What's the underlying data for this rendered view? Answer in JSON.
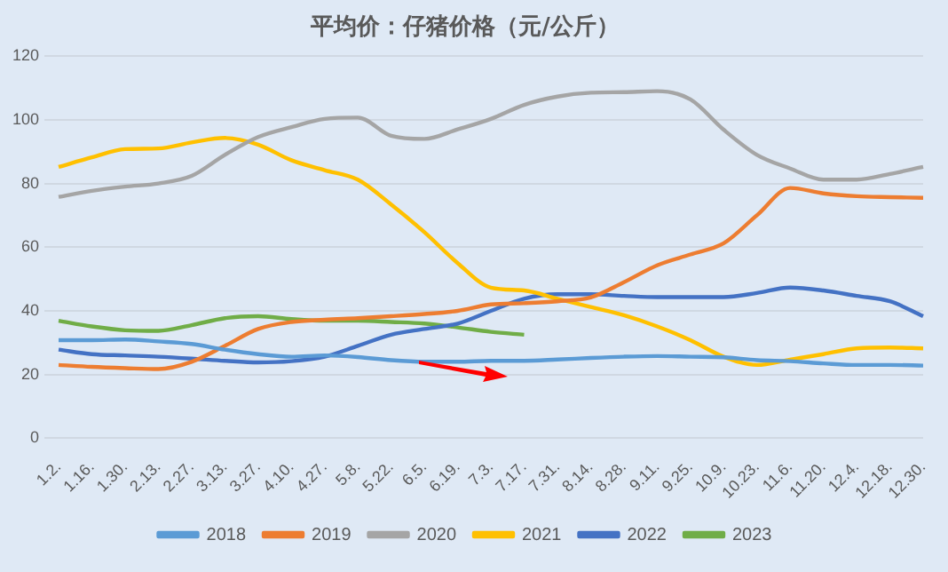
{
  "chart_data": {
    "type": "line",
    "title": "平均价：仔猪价格（元/公斤）",
    "categories": [
      "1.2.",
      "1.16.",
      "1.30.",
      "2.13.",
      "2.27.",
      "3.13.",
      "3.27.",
      "4.10.",
      "4.27.",
      "5.8.",
      "5.22.",
      "6.5.",
      "6.19.",
      "7.3.",
      "7.17.",
      "7.31.",
      "8.14.",
      "8.28.",
      "9.11.",
      "9.25.",
      "10.9.",
      "10.23.",
      "11.6.",
      "11.20.",
      "12.4.",
      "12.18.",
      "12.30."
    ],
    "series": [
      {
        "name": "2018",
        "color": "#5b9bd5",
        "values": [
          30.8,
          30.8,
          31,
          30.4,
          29.6,
          27.8,
          26.4,
          25.6,
          26,
          25.5,
          24.5,
          24,
          24,
          24.3,
          24.3,
          24.7,
          25.2,
          25.6,
          25.8,
          25.6,
          25.4,
          24.5,
          24.2,
          23.5,
          23,
          23,
          22.8
        ]
      },
      {
        "name": "2019",
        "color": "#ed7d31",
        "values": [
          23,
          22.4,
          22,
          21.7,
          24,
          29,
          34.3,
          36.5,
          37.2,
          37.7,
          38.3,
          39,
          40,
          42,
          42.4,
          43,
          44.2,
          49,
          54.3,
          57.7,
          61.2,
          70,
          78.6,
          76.9,
          76,
          75.7,
          75.5
        ]
      },
      {
        "name": "2020",
        "color": "#a5a5a5",
        "values": [
          75.8,
          77.7,
          79,
          80,
          82.4,
          89,
          94.6,
          97.7,
          100.3,
          100.7,
          95,
          94,
          97,
          100.3,
          104.7,
          107.3,
          108.5,
          108.7,
          109,
          106.4,
          96.9,
          89,
          84.7,
          81.2,
          81.2,
          83,
          85.2
        ]
      },
      {
        "name": "2021",
        "color": "#ffc000",
        "values": [
          85.2,
          88.2,
          90.8,
          91,
          92.9,
          94.3,
          92.2,
          87.3,
          84.2,
          81.2,
          73.4,
          64.7,
          55,
          47.3,
          46.4,
          43.8,
          41.2,
          38.6,
          35.1,
          30.8,
          25.6,
          23,
          24.7,
          26.4,
          28.2,
          28.5,
          28.2
        ]
      },
      {
        "name": "2022",
        "color": "#4472c4",
        "values": [
          27.8,
          26.4,
          26,
          25.6,
          25,
          24.3,
          23.8,
          24.2,
          25.6,
          29,
          32.5,
          34.3,
          36,
          40,
          43.8,
          45.2,
          45.2,
          44.7,
          44.3,
          44.3,
          44.3,
          45.6,
          47.3,
          46.4,
          44.7,
          43,
          38.3
        ]
      },
      {
        "name": "2023",
        "color": "#70ad47",
        "values": [
          36.9,
          35.1,
          33.9,
          33.7,
          35.5,
          37.7,
          38.3,
          37.4,
          36.9,
          36.9,
          36.5,
          36,
          34.8,
          33.4,
          32.5,
          null,
          null,
          null,
          null,
          null,
          null,
          null,
          null,
          null,
          null,
          null,
          null
        ]
      }
    ],
    "ylim": [
      0,
      120
    ],
    "yticks": [
      0,
      20,
      40,
      60,
      80,
      100,
      120
    ],
    "grid": "y",
    "legend": "bottom",
    "marker": "none",
    "line_style": "solid"
  }
}
